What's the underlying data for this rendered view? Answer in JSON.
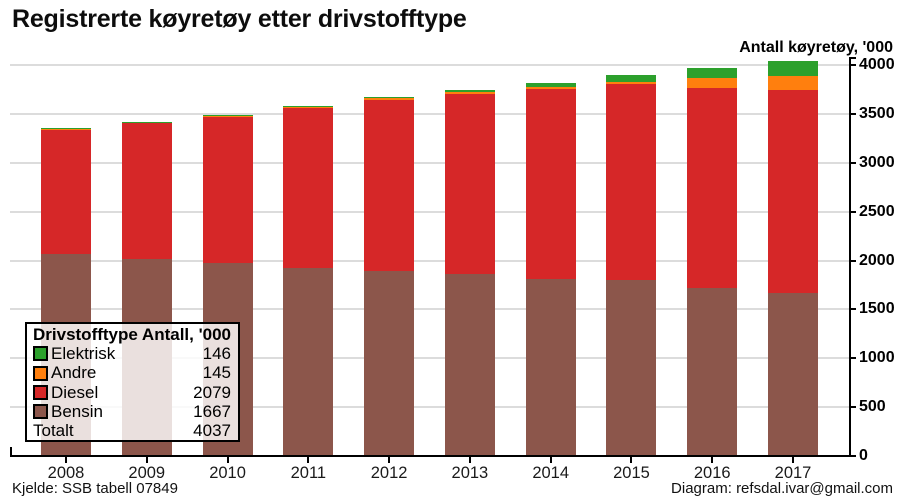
{
  "title": "Registrerte køyretøy etter drivstofftype",
  "y_axis_label": "Antall køyretøy, '000",
  "footer": {
    "source": "Kjelde: SSB tabell 07849",
    "credit": "Diagram: refsdal.ivar@gmail.com"
  },
  "legend": {
    "header_type": "Drivstofftype",
    "header_value": "Antall, '000",
    "rows": [
      {
        "label": "Elektrisk",
        "value": "146",
        "color": "#2ca02c"
      },
      {
        "label": "Andre",
        "value": "145",
        "color": "#ff7f0e"
      },
      {
        "label": "Diesel",
        "value": "2079",
        "color": "#d62728"
      },
      {
        "label": "Bensin",
        "value": "1667",
        "color": "#8c564b"
      },
      {
        "label": "Totalt",
        "value": "4037",
        "color": null
      }
    ]
  },
  "chart_data": {
    "type": "bar",
    "stacked": true,
    "title": "Registrerte køyretøy etter drivstofftype",
    "ylabel": "Antall køyretøy, '000",
    "ylim": [
      0,
      4000
    ],
    "yticks": [
      0,
      500,
      1000,
      1500,
      2000,
      2500,
      3000,
      3500,
      4000
    ],
    "grid": true,
    "axis_side": "right",
    "legend_position": "lower-left",
    "categories": [
      "2008",
      "2009",
      "2010",
      "2011",
      "2012",
      "2013",
      "2014",
      "2015",
      "2016",
      "2017"
    ],
    "series": [
      {
        "name": "Bensin",
        "color": "#8c564b",
        "values": [
          2066,
          2019,
          1971,
          1923,
          1896,
          1858,
          1814,
          1800,
          1715,
          1667
        ]
      },
      {
        "name": "Diesel",
        "color": "#d62728",
        "values": [
          1270,
          1383,
          1498,
          1636,
          1749,
          1847,
          1944,
          2005,
          2054,
          2079
        ]
      },
      {
        "name": "Andre",
        "color": "#ff7f0e",
        "values": [
          13,
          13,
          14,
          14,
          15,
          16,
          18,
          22,
          96,
          145
        ]
      },
      {
        "name": "Elektrisk",
        "color": "#2ca02c",
        "values": [
          3,
          3,
          3,
          5,
          10,
          20,
          41,
          73,
          101,
          146
        ]
      }
    ],
    "totals": [
      3352,
      3418,
      3486,
      3578,
      3670,
      3741,
      3817,
      3900,
      3966,
      4037
    ]
  }
}
